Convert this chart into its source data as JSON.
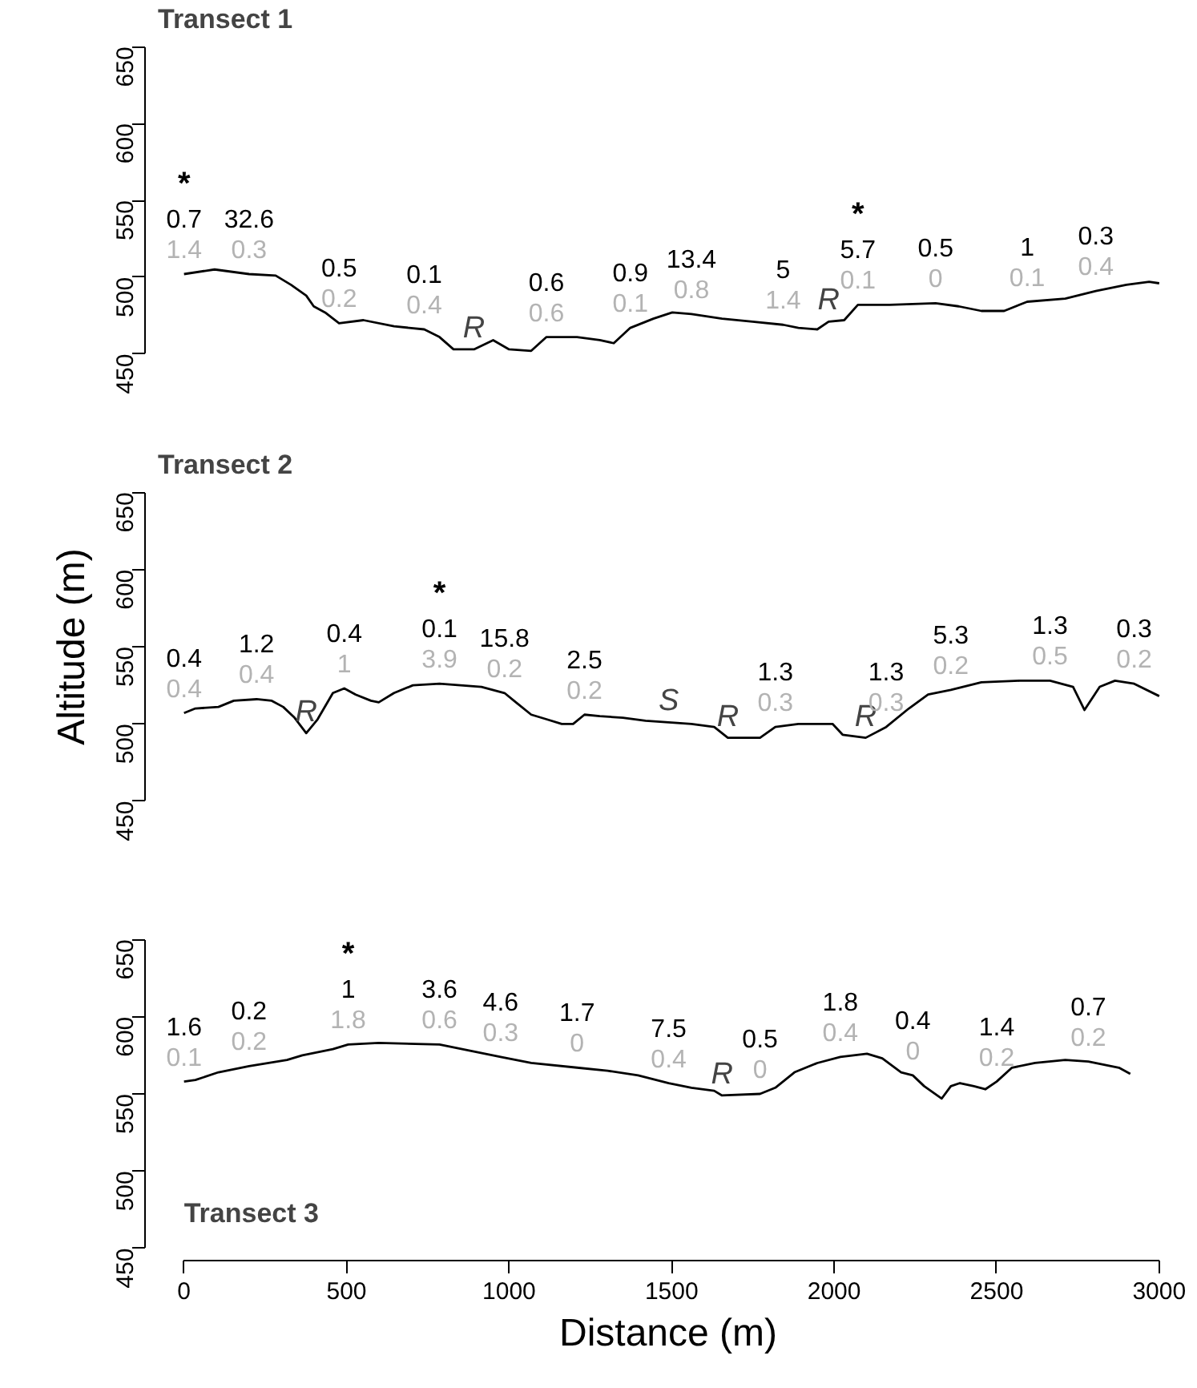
{
  "chart_data": [
    {
      "type": "line",
      "title": "Transect 1",
      "xlim": [
        0,
        3000
      ],
      "ylim": [
        450,
        650
      ],
      "yticks": [
        450,
        500,
        550,
        600,
        650
      ],
      "tick_labels": "y",
      "line_style": "solid",
      "series": [
        {
          "color": "#000000",
          "x": [
            0,
            94,
            200,
            282,
            329,
            376,
            399,
            434,
            477,
            552,
            646,
            739,
            786,
            829,
            892,
            951,
            1000,
            1068,
            1115,
            1209,
            1279,
            1322,
            1373,
            1444,
            1502,
            1561,
            1655,
            1749,
            1843,
            1890,
            1948,
            1983,
            2031,
            2073,
            2171,
            2312,
            2383,
            2453,
            2523,
            2594,
            2711,
            2805,
            2899,
            2969,
            3000
          ],
          "values": [
            502,
            505,
            502,
            501,
            495,
            488,
            481,
            477,
            470,
            472,
            468,
            466,
            461,
            453,
            453,
            459,
            453,
            452,
            461,
            461,
            459,
            457,
            467,
            473,
            477,
            476,
            473,
            471,
            469,
            467,
            466,
            471,
            472,
            482,
            482,
            483,
            481,
            478,
            478,
            484,
            486,
            491,
            495,
            497,
            496
          ]
        }
      ],
      "annotations": [
        {
          "text": "*\n0.7\n1.4",
          "x": 0,
          "y": 502
        },
        {
          "text": "32.6\n0.3",
          "x": 200,
          "y": 502
        },
        {
          "text": "0.5\n0.2",
          "x": 477,
          "y": 470
        },
        {
          "text": "0.1\n0.4",
          "x": 739,
          "y": 466
        },
        {
          "text": "R",
          "x": 892,
          "y": 453
        },
        {
          "text": "0.6\n0.6",
          "x": 1115,
          "y": 461
        },
        {
          "text": "0.9\n0.1",
          "x": 1373,
          "y": 467
        },
        {
          "text": "13.4\n0.8",
          "x": 1561,
          "y": 476
        },
        {
          "text": "5\n1.4",
          "x": 1843,
          "y": 469
        },
        {
          "text": "R",
          "x": 1983,
          "y": 471
        },
        {
          "text": "*\n5.7\n0.1",
          "x": 2073,
          "y": 482
        },
        {
          "text": "0.5\n0",
          "x": 2312,
          "y": 483
        },
        {
          "text": "1\n0.1",
          "x": 2594,
          "y": 484
        },
        {
          "text": "0.3\n0.4",
          "x": 2805,
          "y": 491
        }
      ]
    },
    {
      "type": "line",
      "title": "Transect 2",
      "ylabel": "Altitude (m)",
      "xlim": [
        0,
        3000
      ],
      "ylim": [
        450,
        650
      ],
      "yticks": [
        450,
        500,
        550,
        600,
        650
      ],
      "tick_labels": "y",
      "line_style": "solid",
      "series": [
        {
          "color": "#000000",
          "x": [
            0,
            35,
            106,
            153,
            223,
            270,
            305,
            340,
            376,
            411,
            458,
            493,
            528,
            575,
            599,
            646,
            704,
            786,
            915,
            986,
            1021,
            1068,
            1115,
            1162,
            1197,
            1232,
            1279,
            1350,
            1420,
            1491,
            1561,
            1631,
            1673,
            1772,
            1819,
            1890,
            1995,
            2026,
            2097,
            2160,
            2230,
            2289,
            2359,
            2453,
            2571,
            2664,
            2735,
            2770,
            2817,
            2864,
            2923,
            3000
          ],
          "values": [
            507,
            510,
            511,
            515,
            516,
            515,
            511,
            504,
            494,
            503,
            520,
            523,
            519,
            515,
            514,
            520,
            525,
            526,
            524,
            520,
            514,
            506,
            503,
            500,
            500,
            506,
            505,
            504,
            502,
            501,
            500,
            498,
            491,
            491,
            498,
            500,
            500,
            493,
            491,
            498,
            510,
            519,
            522,
            527,
            528,
            528,
            524,
            509,
            524,
            528,
            526,
            518
          ]
        }
      ],
      "annotations": [
        {
          "text": "0.4\n0.4",
          "x": 0,
          "y": 507
        },
        {
          "text": "1.2\n0.4",
          "x": 223,
          "y": 516
        },
        {
          "text": "R",
          "x": 376,
          "y": 494
        },
        {
          "text": "0.4\n1",
          "x": 493,
          "y": 523
        },
        {
          "text": "*\n0.1\n3.9",
          "x": 786,
          "y": 526
        },
        {
          "text": "15.8\n0.2",
          "x": 986,
          "y": 520
        },
        {
          "text": "2.5\n0.2",
          "x": 1232,
          "y": 506
        },
        {
          "text": "S",
          "x": 1491,
          "y": 501
        },
        {
          "text": "R",
          "x": 1673,
          "y": 491
        },
        {
          "text": "1.3\n0.3",
          "x": 1819,
          "y": 498
        },
        {
          "text": "R",
          "x": 2097,
          "y": 491
        },
        {
          "text": "1.3\n0.3",
          "x": 2160,
          "y": 498
        },
        {
          "text": "5.3\n0.2",
          "x": 2359,
          "y": 522
        },
        {
          "text": "1.3\n0.5",
          "x": 2664,
          "y": 528
        },
        {
          "text": "0.3\n0.2",
          "x": 2923,
          "y": 526
        }
      ]
    },
    {
      "type": "line",
      "xlabel": "Distance (m)",
      "xlim": [
        0,
        3000
      ],
      "xticks": [
        0,
        500,
        1000,
        1500,
        2000,
        2500,
        3000
      ],
      "ylim": [
        450,
        650
      ],
      "yticks": [
        450,
        500,
        550,
        600,
        650
      ],
      "line_style": "solid",
      "series": [
        {
          "color": "#000000",
          "x": [
            0,
            35,
            106,
            200,
            317,
            364,
            458,
            505,
            599,
            786,
            880,
            974,
            1068,
            1209,
            1303,
            1397,
            1491,
            1561,
            1631,
            1655,
            1772,
            1819,
            1878,
            1948,
            2019,
            2101,
            2148,
            2206,
            2242,
            2277,
            2331,
            2359,
            2387,
            2430,
            2465,
            2500,
            2547,
            2618,
            2711,
            2782,
            2876,
            2911
          ],
          "values": [
            558,
            559,
            564,
            568,
            572,
            575,
            579,
            582,
            583,
            582,
            578,
            574,
            570,
            567,
            565,
            562,
            557,
            554,
            552,
            549,
            550,
            554,
            564,
            570,
            574,
            576,
            573,
            564,
            562,
            555,
            547,
            555,
            557,
            555,
            553,
            558,
            567,
            570,
            572,
            571,
            567,
            563
          ]
        }
      ],
      "annotations": [
        "Transect 3",
        {
          "text": "1.6\n0.1",
          "x": 0,
          "y": 558
        },
        {
          "text": "0.2\n0.2",
          "x": 200,
          "y": 568
        },
        {
          "text": "*\n1\n1.8",
          "x": 505,
          "y": 582
        },
        {
          "text": "3.6\n0.6",
          "x": 786,
          "y": 582
        },
        {
          "text": "4.6\n0.3",
          "x": 974,
          "y": 574
        },
        {
          "text": "1.7\n0",
          "x": 1209,
          "y": 567
        },
        {
          "text": "7.5\n0.4",
          "x": 1491,
          "y": 557
        },
        {
          "text": "R",
          "x": 1655,
          "y": 549
        },
        {
          "text": "0.5\n0",
          "x": 1772,
          "y": 550
        },
        {
          "text": "1.8\n0.4",
          "x": 2019,
          "y": 574
        },
        {
          "text": "0.4\n0",
          "x": 2242,
          "y": 562
        },
        {
          "text": "1.4\n0.2",
          "x": 2500,
          "y": 558
        },
        {
          "text": "0.7\n0.2",
          "x": 2782,
          "y": 571
        }
      ]
    }
  ]
}
